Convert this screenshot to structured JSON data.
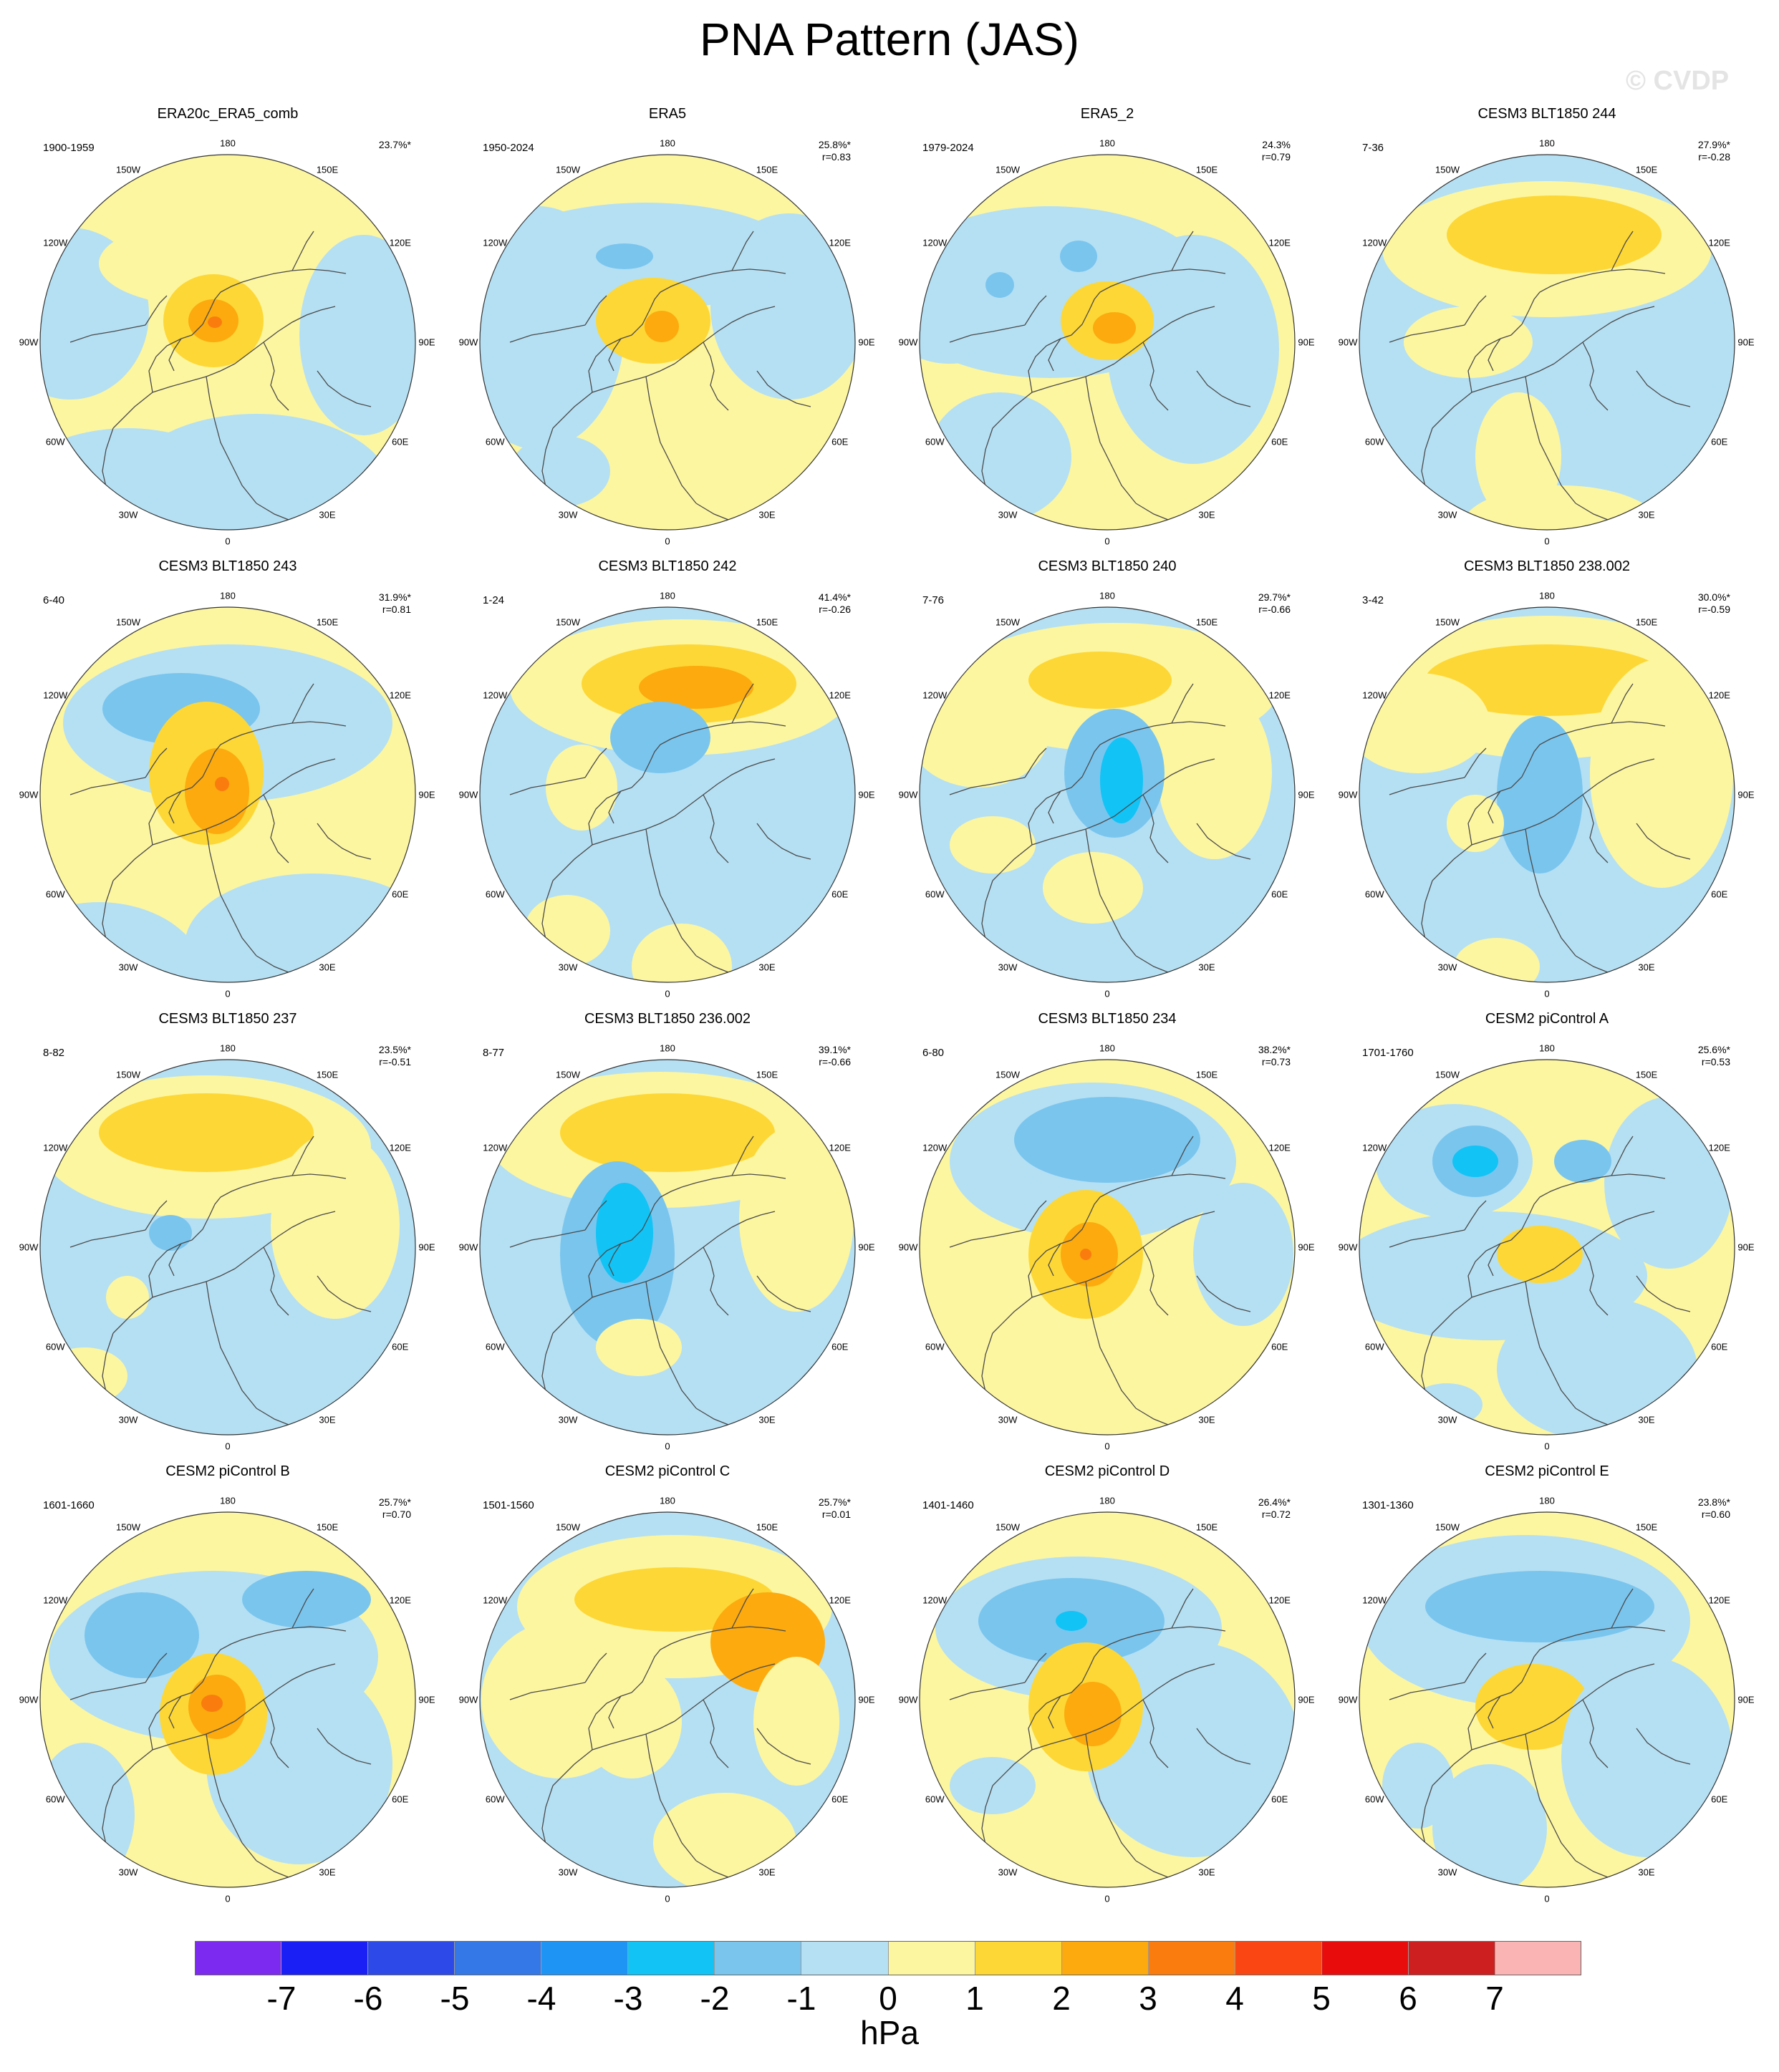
{
  "title": "PNA Pattern (JAS)",
  "watermark": "© CVDP",
  "lon_labels": [
    "180",
    "150E",
    "120E",
    "90E",
    "60E",
    "30E",
    "0",
    "30W",
    "60W",
    "90W",
    "120W",
    "150W"
  ],
  "colors": {
    "light_blue": "#b5e0f3",
    "mid_blue": "#7ac5ee",
    "blue": "#50aee8",
    "cyan": "#12c3f5",
    "light_yellow": "#fdf6a0",
    "yellow": "#fdd735",
    "orange": "#fcaa0e",
    "dark_orange": "#fa7c0f",
    "coast": "#4a4a4a"
  },
  "panels": [
    {
      "title": "ERA20c_ERA5_comb",
      "period": "1900-1959",
      "pct": "23.7%*",
      "r": "",
      "base": "light_yellow"
    },
    {
      "title": "ERA5",
      "period": "1950-2024",
      "pct": "25.8%*",
      "r": "r=0.83",
      "base": "light_yellow"
    },
    {
      "title": "ERA5_2",
      "period": "1979-2024",
      "pct": "24.3%",
      "r": "r=0.79",
      "base": "light_yellow"
    },
    {
      "title": "CESM3 BLT1850 244",
      "period": "7-36",
      "pct": "27.9%*",
      "r": "r=-0.28",
      "base": "light_blue"
    },
    {
      "title": "CESM3 BLT1850 243",
      "period": "6-40",
      "pct": "31.9%*",
      "r": "r=0.81",
      "base": "light_yellow"
    },
    {
      "title": "CESM3 BLT1850 242",
      "period": "1-24",
      "pct": "41.4%*",
      "r": "r=-0.26",
      "base": "light_blue"
    },
    {
      "title": "CESM3 BLT1850 240",
      "period": "7-76",
      "pct": "29.7%*",
      "r": "r=-0.66",
      "base": "light_blue"
    },
    {
      "title": "CESM3 BLT1850 238.002",
      "period": "3-42",
      "pct": "30.0%*",
      "r": "r=-0.59",
      "base": "light_blue"
    },
    {
      "title": "CESM3 BLT1850 237",
      "period": "8-82",
      "pct": "23.5%*",
      "r": "r=-0.51",
      "base": "light_blue"
    },
    {
      "title": "CESM3 BLT1850 236.002",
      "period": "8-77",
      "pct": "39.1%*",
      "r": "r=-0.66",
      "base": "light_blue"
    },
    {
      "title": "CESM3 BLT1850 234",
      "period": "6-80",
      "pct": "38.2%*",
      "r": "r=0.73",
      "base": "light_yellow"
    },
    {
      "title": "CESM2 piControl A",
      "period": "1701-1760",
      "pct": "25.6%*",
      "r": "r=0.53",
      "base": "light_yellow"
    },
    {
      "title": "CESM2 piControl B",
      "period": "1601-1660",
      "pct": "25.7%*",
      "r": "r=0.70",
      "base": "light_yellow"
    },
    {
      "title": "CESM2 piControl C",
      "period": "1501-1560",
      "pct": "25.7%*",
      "r": "r=0.01",
      "base": "light_blue"
    },
    {
      "title": "CESM2 piControl D",
      "period": "1401-1460",
      "pct": "26.4%*",
      "r": "r=0.72",
      "base": "light_yellow"
    },
    {
      "title": "CESM2 piControl E",
      "period": "1301-1360",
      "pct": "23.8%*",
      "r": "r=0.60",
      "base": "light_yellow"
    }
  ],
  "colorbar": {
    "units": "hPa",
    "tick_labels": [
      "-7",
      "-6",
      "-5",
      "-4",
      "-3",
      "-2",
      "-1",
      "0",
      "1",
      "2",
      "3",
      "4",
      "5",
      "6",
      "7"
    ],
    "colors": [
      "#7d2af0",
      "#1a1ff6",
      "#2d49e8",
      "#3478e8",
      "#1e95f5",
      "#12c3f5",
      "#7ac5ee",
      "#b5e0f3",
      "#fdf6a0",
      "#fdd735",
      "#fcaa0e",
      "#fa7c0f",
      "#fa4612",
      "#e80c0c",
      "#cd1f20",
      "#fbb4b4"
    ]
  }
}
